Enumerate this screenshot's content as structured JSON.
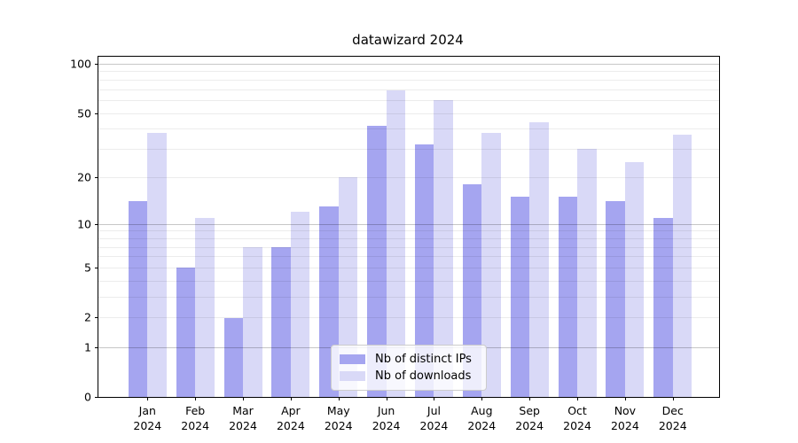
{
  "title": "datawizard 2024",
  "chart_data": {
    "type": "bar",
    "title": "datawizard 2024",
    "xlabel": "",
    "ylabel": "",
    "y_scale": "log10(value+1)",
    "ylim": [
      0,
      110.4
    ],
    "categories": [
      "Jan",
      "Feb",
      "Mar",
      "Apr",
      "May",
      "Jun",
      "Jul",
      "Aug",
      "Sep",
      "Oct",
      "Nov",
      "Dec"
    ],
    "category_year": "2024",
    "series": [
      {
        "name": "Nb of distinct IPs",
        "color": "#a5a5f0",
        "values": [
          14,
          5,
          2,
          7,
          13,
          42,
          32,
          18,
          15,
          15,
          14,
          11
        ]
      },
      {
        "name": "Nb of downloads",
        "color": "#d9d9f7",
        "values": [
          38,
          11,
          7,
          12,
          20,
          69,
          60,
          38,
          44,
          30,
          25,
          37
        ]
      }
    ],
    "yticks": [
      100,
      50,
      20,
      10,
      5,
      2,
      1,
      0
    ],
    "minor_gridlines": [
      2,
      3,
      4,
      5,
      6,
      7,
      8,
      9,
      20,
      30,
      40,
      50,
      60,
      70,
      80,
      90
    ],
    "major_gridlines": [
      1,
      10,
      100
    ],
    "grid": true,
    "grid_above_bars": true,
    "legend_position": "lower center"
  },
  "legend": {
    "items": [
      {
        "label": "Nb of distinct IPs"
      },
      {
        "label": "Nb of downloads"
      }
    ]
  }
}
